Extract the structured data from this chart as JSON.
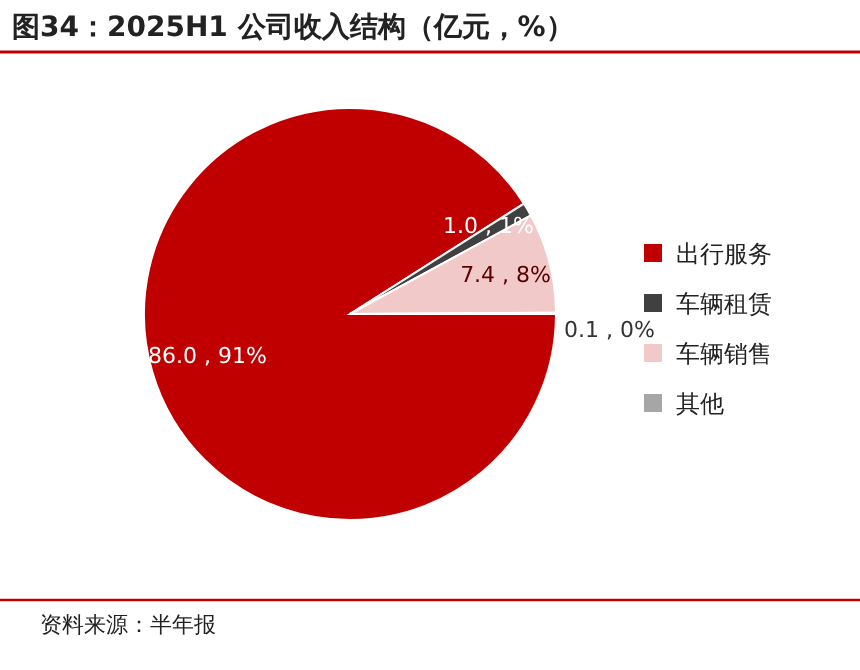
{
  "chart_data": {
    "type": "pie",
    "title": "图34：2025H1 公司收入结构（亿元，%）",
    "categories": [
      "出行服务",
      "车辆租赁",
      "车辆销售",
      "其他"
    ],
    "values": [
      86.0,
      1.0,
      7.4,
      0.1
    ],
    "value_labels": [
      "86.0 , 91%",
      "1.0 , 1%",
      "7.4 , 8%",
      "0.1 , 0%"
    ],
    "colors": [
      "#c00000",
      "#404040",
      "#f2c9c9",
      "#a6a6a6"
    ],
    "legend": "right",
    "annotations": [
      "资料来源：半年报"
    ]
  }
}
